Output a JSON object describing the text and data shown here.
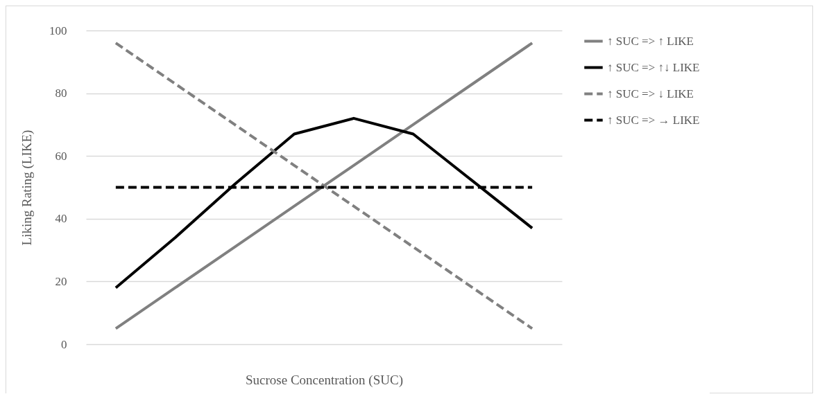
{
  "chart_data": {
    "type": "line",
    "xlabel": "Sucrose Concentration (SUC)",
    "ylabel": "Liking Rating (LIKE)",
    "categories": [
      null,
      null,
      null,
      null,
      null,
      null,
      null,
      null
    ],
    "series": [
      {
        "name": "↑ SUC  => ↑ LIKE",
        "color": "#808080",
        "line_style": "solid",
        "values": [
          5,
          18,
          31,
          44,
          57,
          70,
          83,
          96
        ]
      },
      {
        "name": "↑ SUC  => ↑↓ LIKE",
        "color": "#000000",
        "line_style": "solid",
        "values": [
          18,
          34,
          51,
          67,
          72,
          67,
          52,
          37
        ]
      },
      {
        "name": "↑ SUC  => ↓ LIKE",
        "color": "#808080",
        "line_style": "dashed",
        "values": [
          96,
          83,
          70,
          57,
          44,
          31,
          18,
          5
        ]
      },
      {
        "name": "↑ SUC  => → LIKE",
        "color": "#000000",
        "line_style": "dashed",
        "values": [
          50,
          50,
          50,
          50,
          50,
          50,
          50,
          50
        ]
      }
    ],
    "ylim": [
      0,
      100
    ],
    "yticks": [
      0,
      20,
      40,
      60,
      80,
      100
    ],
    "grid": "y",
    "legend": "right",
    "marker": "none"
  }
}
